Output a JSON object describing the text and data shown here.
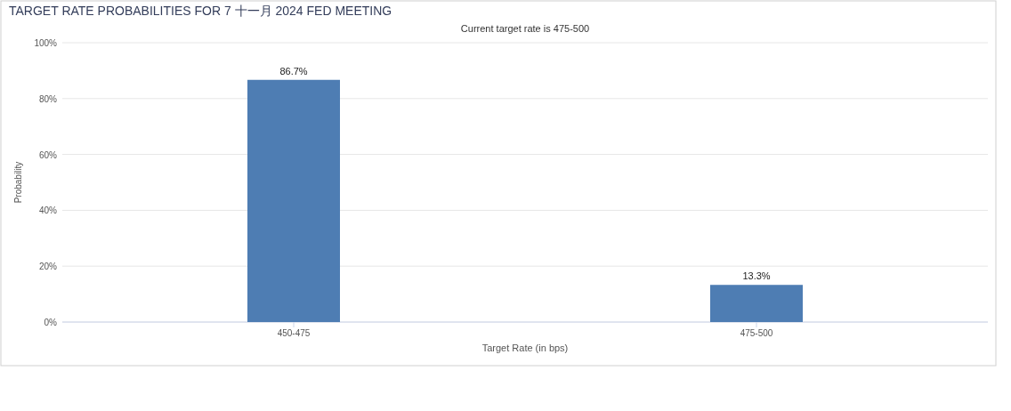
{
  "chart_data": {
    "type": "bar",
    "title": "TARGET RATE PROBABILITIES FOR 7 十一月 2024 FED MEETING",
    "subtitle": "Current target rate is 475-500",
    "xlabel": "Target Rate (in bps)",
    "ylabel": "Probability",
    "categories": [
      "450-475",
      "475-500"
    ],
    "values": [
      86.7,
      13.3
    ],
    "color": "#4e7db3",
    "value_labels": [
      "86.7%",
      "13.3%"
    ],
    "ylim": [
      0,
      100
    ],
    "yticks": [
      {
        "value": 0,
        "label": "0%"
      },
      {
        "value": 20,
        "label": "20%"
      },
      {
        "value": 40,
        "label": "40%"
      },
      {
        "value": 60,
        "label": "60%"
      },
      {
        "value": 80,
        "label": "80%"
      },
      {
        "value": 100,
        "label": "100%"
      }
    ],
    "grid": "y"
  }
}
